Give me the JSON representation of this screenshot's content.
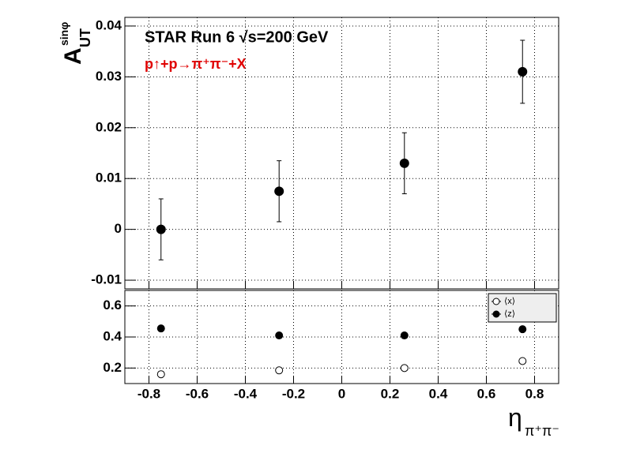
{
  "chart_data": [
    {
      "type": "scatter",
      "title": "STAR Run 6 √s=200 GeV",
      "subtitle": "p↑+p→π⁺π⁻+X",
      "y_label": {
        "main": "A",
        "sub": "UT",
        "sup": "sinφ"
      },
      "xlim": [
        -0.9,
        0.9
      ],
      "ylim": [
        -0.0117,
        0.0417
      ],
      "yticks": [
        -0.01,
        0,
        0.01,
        0.02,
        0.03,
        0.04
      ],
      "grid": true,
      "series": [
        {
          "color": "#000000",
          "marker": "filled",
          "x": [
            -0.75,
            -0.26,
            0.26,
            0.75
          ],
          "values": [
            0.0,
            0.0075,
            0.013,
            0.031
          ],
          "errors": [
            0.006,
            0.006,
            0.006,
            0.0062
          ]
        }
      ]
    },
    {
      "type": "scatter",
      "x_label": {
        "main": "η",
        "sub": "π⁺π⁻"
      },
      "xlim": [
        -0.9,
        0.9
      ],
      "ylim": [
        0.1,
        0.7
      ],
      "xticks": [
        -0.8,
        -0.6,
        -0.4,
        -0.2,
        0,
        0.2,
        0.4,
        0.6,
        0.8
      ],
      "yticks": [
        0.2,
        0.4,
        0.6
      ],
      "grid": true,
      "legend": "top-right",
      "series": [
        {
          "name": "⟨x⟩",
          "color": "#000000",
          "marker": "open",
          "x": [
            -0.75,
            -0.26,
            0.26,
            0.75
          ],
          "values": [
            0.16,
            0.185,
            0.2,
            0.245
          ]
        },
        {
          "name": "⟨z⟩",
          "color": "#000000",
          "marker": "filled",
          "x": [
            -0.75,
            -0.26,
            0.26,
            0.75
          ],
          "values": [
            0.455,
            0.41,
            0.41,
            0.45
          ]
        }
      ]
    }
  ]
}
